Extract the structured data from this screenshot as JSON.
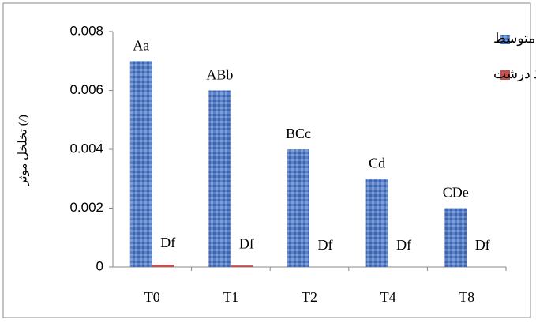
{
  "chart_data": {
    "type": "bar",
    "y_label": "تخلخل موثر (/)",
    "categories": [
      "T0",
      "T1",
      "T2",
      "T4",
      "T8"
    ],
    "series": [
      {
        "name": "منافذ متوسط",
        "color": "#4f78c0",
        "values": [
          0.007,
          0.006,
          0.004,
          0.003,
          0.002
        ],
        "labels": [
          "Aa",
          "ABb",
          "BCc",
          "Cd",
          "CDe"
        ]
      },
      {
        "name": "منافذ درشت",
        "color": "#c0504d",
        "values": [
          8e-05,
          5e-05,
          0,
          0,
          0
        ],
        "labels": [
          "Df",
          "Df",
          "Df",
          "Df",
          "Df"
        ]
      }
    ],
    "ylim": [
      0,
      0.008
    ],
    "yticks": [
      0,
      0.002,
      0.004,
      0.006,
      0.008
    ],
    "legend": "top-right"
  }
}
